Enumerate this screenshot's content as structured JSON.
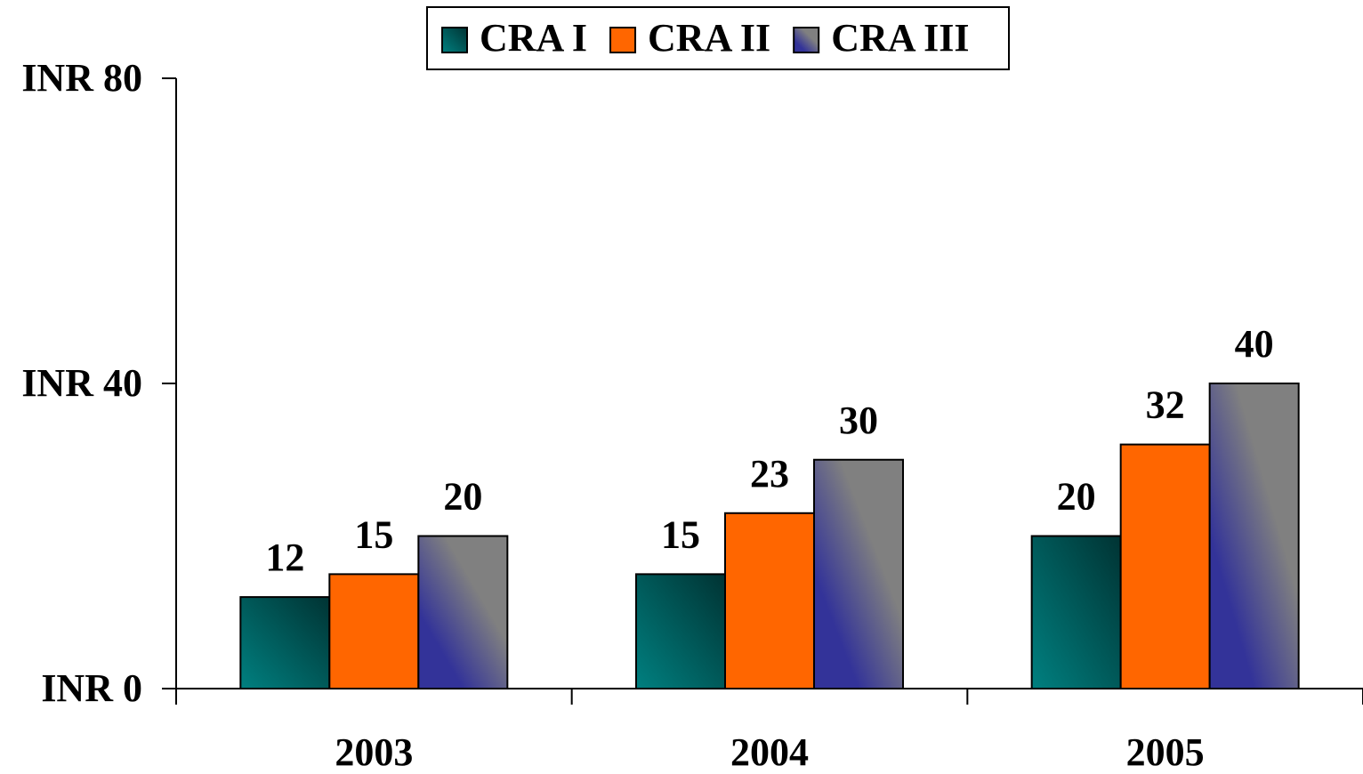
{
  "chart_data": {
    "type": "bar",
    "categories": [
      "2003",
      "2004",
      "2005"
    ],
    "series": [
      {
        "name": "CRA I",
        "color": "#008080",
        "values": [
          12,
          15,
          20
        ]
      },
      {
        "name": "CRA II",
        "color": "#ff6600",
        "values": [
          15,
          23,
          32
        ]
      },
      {
        "name": "CRA III",
        "color": "#808080",
        "values": [
          20,
          30,
          40
        ]
      }
    ],
    "ylim": [
      0,
      80
    ],
    "yticks": [
      {
        "value": 0,
        "label": "INR 0"
      },
      {
        "value": 40,
        "label": "INR 40"
      },
      {
        "value": 80,
        "label": "INR 80"
      }
    ],
    "legend": "top"
  }
}
